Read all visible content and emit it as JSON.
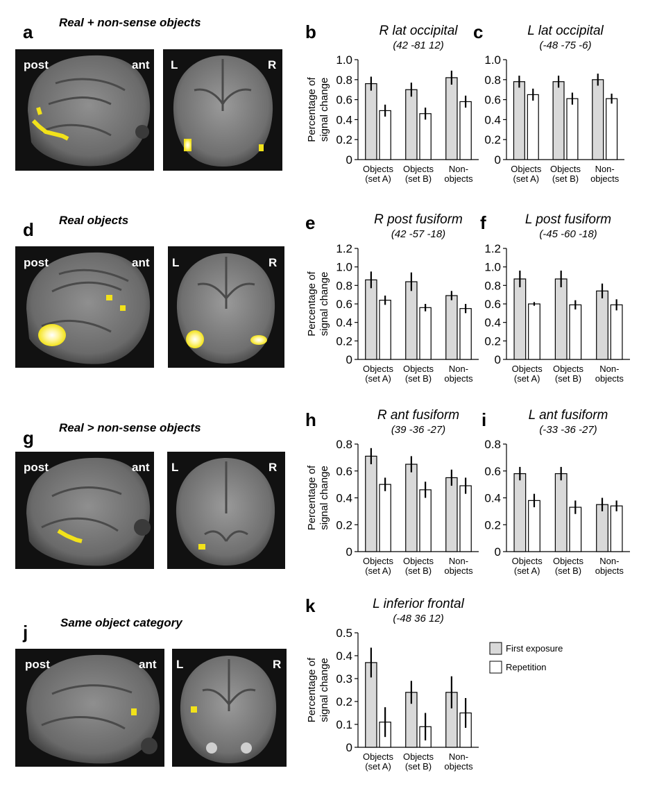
{
  "colors": {
    "first_exposure": "#d9d9d9",
    "repetition": "#ffffff",
    "bar_stroke": "#000000",
    "activation": "#f2e21a",
    "activation_core": "#ffffe0"
  },
  "rows": [
    {
      "letter": "a",
      "title": "Real + non-sense objects",
      "sagittal": {
        "left": "post",
        "right": "ant"
      },
      "coronal": {
        "left": "L",
        "right": "R"
      }
    },
    {
      "letter": "d",
      "title": "Real objects",
      "sagittal": {
        "left": "post",
        "right": "ant"
      },
      "coronal": {
        "left": "L",
        "right": "R"
      }
    },
    {
      "letter": "g",
      "title": "Real > non-sense objects",
      "sagittal": {
        "left": "post",
        "right": "ant"
      },
      "coronal": {
        "left": "L",
        "right": "R"
      }
    },
    {
      "letter": "j",
      "title": "Same object category",
      "sagittal": {
        "left": "post",
        "right": "ant"
      },
      "coronal": {
        "left": "L",
        "right": "R"
      }
    }
  ],
  "legend": {
    "first_exposure": "First exposure",
    "repetition": "Repetition"
  },
  "chart_data": [
    {
      "type": "bar",
      "letter": "b",
      "title": "R lat occipital",
      "subtitle": "(42 -81 12)",
      "ylabel": [
        "Percentage of",
        "signal change"
      ],
      "ylim": [
        0,
        1.0
      ],
      "yticks": [
        "0",
        "0.2",
        "0.4",
        "0.6",
        "0.8",
        "1.0"
      ],
      "categories": [
        [
          "Objects",
          "(set A)"
        ],
        [
          "Objects",
          "(set B)"
        ],
        [
          "Non-",
          "objects"
        ]
      ],
      "series": [
        {
          "name": "First exposure",
          "values": [
            0.76,
            0.7,
            0.82
          ],
          "errors": [
            0.07,
            0.07,
            0.07
          ]
        },
        {
          "name": "Repetition",
          "values": [
            0.49,
            0.46,
            0.58
          ],
          "errors": [
            0.06,
            0.06,
            0.06
          ]
        }
      ]
    },
    {
      "type": "bar",
      "letter": "c",
      "title": "L lat occipital",
      "subtitle": "(-48 -75 -6)",
      "ylabel": [],
      "ylim": [
        0,
        1.0
      ],
      "yticks": [
        "0",
        "0.2",
        "0.4",
        "0.6",
        "0.8",
        "1.0"
      ],
      "categories": [
        [
          "Objects",
          "(set A)"
        ],
        [
          "Objects",
          "(set B)"
        ],
        [
          "Non-",
          "objects"
        ]
      ],
      "series": [
        {
          "name": "First exposure",
          "values": [
            0.78,
            0.78,
            0.8
          ],
          "errors": [
            0.06,
            0.06,
            0.06
          ]
        },
        {
          "name": "Repetition",
          "values": [
            0.65,
            0.61,
            0.61
          ],
          "errors": [
            0.06,
            0.06,
            0.05
          ]
        }
      ]
    },
    {
      "type": "bar",
      "letter": "e",
      "title": "R post fusiform",
      "subtitle": "(42 -57 -18)",
      "ylabel": [
        "Percentage of",
        "signal change"
      ],
      "ylim": [
        0,
        1.2
      ],
      "yticks": [
        "0",
        "0.2",
        "0.4",
        "0.6",
        "0.8",
        "1.0",
        "1.2"
      ],
      "categories": [
        [
          "Objects",
          "(set A)"
        ],
        [
          "Objects",
          "(set B)"
        ],
        [
          "Non-",
          "objects"
        ]
      ],
      "series": [
        {
          "name": "First exposure",
          "values": [
            0.86,
            0.84,
            0.69
          ],
          "errors": [
            0.09,
            0.1,
            0.05
          ]
        },
        {
          "name": "Repetition",
          "values": [
            0.64,
            0.56,
            0.55
          ],
          "errors": [
            0.05,
            0.04,
            0.05
          ]
        }
      ]
    },
    {
      "type": "bar",
      "letter": "f",
      "title": "L post fusiform",
      "subtitle": "(-45 -60 -18)",
      "ylabel": [],
      "ylim": [
        0,
        1.2
      ],
      "yticks": [
        "0",
        "0.2",
        "0.4",
        "0.6",
        "0.8",
        "1.0",
        "1.2"
      ],
      "categories": [
        [
          "Objects",
          "(set A)"
        ],
        [
          "Objects",
          "(set B)"
        ],
        [
          "Non-",
          "objects"
        ]
      ],
      "series": [
        {
          "name": "First exposure",
          "values": [
            0.87,
            0.87,
            0.74
          ],
          "errors": [
            0.09,
            0.09,
            0.08
          ]
        },
        {
          "name": "Repetition",
          "values": [
            0.6,
            0.59,
            0.59
          ],
          "errors": [
            0.02,
            0.05,
            0.06
          ]
        }
      ]
    },
    {
      "type": "bar",
      "letter": "h",
      "title": "R ant fusiform",
      "subtitle": "(39 -36 -27)",
      "ylabel": [
        "Percentage of",
        "signal change"
      ],
      "ylim": [
        0,
        0.8
      ],
      "yticks": [
        "0",
        "0.2",
        "0.4",
        "0.6",
        "0.8"
      ],
      "categories": [
        [
          "Objects",
          "(set A)"
        ],
        [
          "Objects",
          "(set B)"
        ],
        [
          "Non-",
          "objects"
        ]
      ],
      "series": [
        {
          "name": "First exposure",
          "values": [
            0.71,
            0.65,
            0.55
          ],
          "errors": [
            0.06,
            0.06,
            0.06
          ]
        },
        {
          "name": "Repetition",
          "values": [
            0.5,
            0.46,
            0.49
          ],
          "errors": [
            0.05,
            0.06,
            0.06
          ]
        }
      ]
    },
    {
      "type": "bar",
      "letter": "i",
      "title": "L ant fusiform",
      "subtitle": "(-33 -36 -27)",
      "ylabel": [],
      "ylim": [
        0,
        0.8
      ],
      "yticks": [
        "0",
        "0.2",
        "0.4",
        "0.6",
        "0.8"
      ],
      "categories": [
        [
          "Objects",
          "(set A)"
        ],
        [
          "Objects",
          "(set B)"
        ],
        [
          "Non-",
          "objects"
        ]
      ],
      "series": [
        {
          "name": "First exposure",
          "values": [
            0.58,
            0.58,
            0.35
          ],
          "errors": [
            0.05,
            0.05,
            0.05
          ]
        },
        {
          "name": "Repetition",
          "values": [
            0.38,
            0.33,
            0.34
          ],
          "errors": [
            0.05,
            0.05,
            0.04
          ]
        }
      ]
    },
    {
      "type": "bar",
      "letter": "k",
      "title": "L inferior frontal",
      "subtitle": "(-48 36 12)",
      "ylabel": [
        "Percentage of",
        "signal change"
      ],
      "ylim": [
        0,
        0.5
      ],
      "yticks": [
        "0",
        "0.1",
        "0.2",
        "0.3",
        "0.4",
        "0.5"
      ],
      "categories": [
        [
          "Objects",
          "(set A)"
        ],
        [
          "Objects",
          "(set B)"
        ],
        [
          "Non-",
          "objects"
        ]
      ],
      "series": [
        {
          "name": "First exposure",
          "values": [
            0.37,
            0.24,
            0.24
          ],
          "errors": [
            0.065,
            0.05,
            0.07
          ]
        },
        {
          "name": "Repetition",
          "values": [
            0.11,
            0.09,
            0.15
          ],
          "errors": [
            0.065,
            0.06,
            0.065
          ]
        }
      ]
    }
  ]
}
